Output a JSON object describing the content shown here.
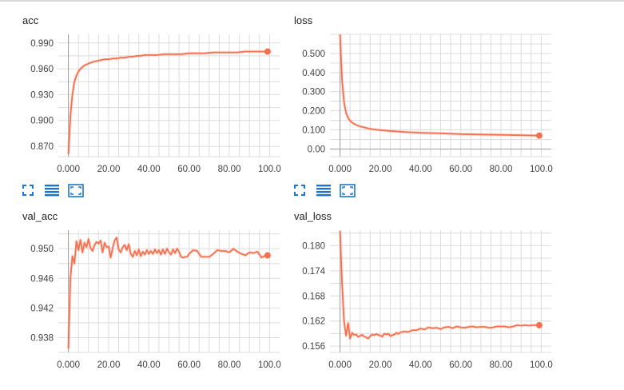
{
  "colors": {
    "line": "#f4704f",
    "smooth_shadow": "#fbc6b8",
    "grid": "#dcdcdc",
    "toolbar_icon": "#1976d2"
  },
  "toolbar_icons": [
    "fit-domain-icon",
    "toggle-log-scale-icon",
    "expand-chart-icon"
  ],
  "chart_data": [
    {
      "type": "line",
      "title": "acc",
      "x_ticks": [
        "0.000",
        "20.00",
        "40.00",
        "60.00",
        "80.00",
        "100.0"
      ],
      "y_ticks": [
        "0.990",
        "0.960",
        "0.930",
        "0.900",
        "0.870"
      ],
      "y_tick_values": [
        0.99,
        0.96,
        0.93,
        0.9,
        0.87
      ],
      "xlim": [
        -5,
        105
      ],
      "ylim": [
        0.858,
        1.0
      ],
      "series": [
        {
          "x": [
            0,
            1,
            2,
            3,
            4,
            5,
            6,
            8,
            10,
            12,
            14,
            16,
            18,
            20,
            22,
            24,
            26,
            28,
            30,
            32,
            34,
            36,
            38,
            40,
            44,
            48,
            52,
            56,
            60,
            64,
            68,
            72,
            76,
            80,
            84,
            88,
            92,
            96,
            99
          ],
          "y": [
            0.861,
            0.905,
            0.93,
            0.945,
            0.952,
            0.957,
            0.96,
            0.964,
            0.966,
            0.968,
            0.969,
            0.97,
            0.971,
            0.971,
            0.972,
            0.972,
            0.973,
            0.973,
            0.974,
            0.974,
            0.975,
            0.975,
            0.976,
            0.976,
            0.976,
            0.977,
            0.977,
            0.977,
            0.978,
            0.978,
            0.978,
            0.979,
            0.979,
            0.979,
            0.979,
            0.98,
            0.98,
            0.98,
            0.98
          ],
          "end_marker": true
        }
      ],
      "grid": true
    },
    {
      "type": "line",
      "title": "loss",
      "x_ticks": [
        "0.000",
        "20.00",
        "40.00",
        "60.00",
        "80.00",
        "100.0"
      ],
      "y_ticks": [
        "0.500",
        "0.400",
        "0.300",
        "0.200",
        "0.100",
        "0.00"
      ],
      "y_tick_values": [
        0.5,
        0.4,
        0.3,
        0.2,
        0.1,
        0.0
      ],
      "xlim": [
        -5,
        105
      ],
      "ylim": [
        -0.04,
        0.6
      ],
      "series": [
        {
          "x": [
            0,
            1,
            2,
            3,
            4,
            5,
            6,
            8,
            10,
            12,
            14,
            16,
            20,
            24,
            28,
            32,
            36,
            40,
            50,
            60,
            70,
            80,
            90,
            99
          ],
          "y": [
            0.6,
            0.36,
            0.245,
            0.19,
            0.163,
            0.148,
            0.138,
            0.126,
            0.118,
            0.113,
            0.108,
            0.104,
            0.099,
            0.095,
            0.092,
            0.089,
            0.087,
            0.085,
            0.082,
            0.078,
            0.076,
            0.074,
            0.072,
            0.07
          ],
          "end_marker": true
        }
      ],
      "grid": true
    },
    {
      "type": "line",
      "title": "val_acc",
      "x_ticks": [
        "0.000",
        "20.00",
        "40.00",
        "60.00",
        "80.00",
        "100.0"
      ],
      "y_ticks": [
        "0.950",
        "0.946",
        "0.942",
        "0.938"
      ],
      "y_tick_values": [
        0.95,
        0.946,
        0.942,
        0.938
      ],
      "xlim": [
        -5,
        105
      ],
      "ylim": [
        0.936,
        0.9525
      ],
      "series": [
        {
          "x": [
            0,
            1,
            2,
            3,
            4,
            5,
            6,
            7,
            8,
            9,
            10,
            11,
            12,
            13,
            14,
            15,
            16,
            17,
            18,
            19,
            20,
            21,
            22,
            23,
            24,
            25,
            26,
            27,
            28,
            29,
            30,
            31,
            32,
            33,
            34,
            35,
            36,
            37,
            38,
            39,
            40,
            41,
            42,
            43,
            44,
            45,
            46,
            47,
            48,
            49,
            50,
            51,
            52,
            53,
            54,
            55,
            56,
            57,
            58,
            59,
            60,
            62,
            64,
            66,
            68,
            70,
            72,
            74,
            76,
            78,
            80,
            82,
            84,
            86,
            88,
            90,
            92,
            94,
            96,
            98,
            99
          ],
          "y": [
            0.9365,
            0.946,
            0.949,
            0.948,
            0.951,
            0.9498,
            0.9512,
            0.9495,
            0.9508,
            0.9502,
            0.9513,
            0.9501,
            0.9497,
            0.9505,
            0.9509,
            0.9507,
            0.9511,
            0.9495,
            0.9508,
            0.9502,
            0.9503,
            0.9488,
            0.9501,
            0.9511,
            0.9515,
            0.9499,
            0.9495,
            0.9502,
            0.9505,
            0.9498,
            0.9506,
            0.9493,
            0.9489,
            0.9497,
            0.9491,
            0.9499,
            0.949,
            0.9496,
            0.9492,
            0.9498,
            0.9493,
            0.9497,
            0.9493,
            0.9499,
            0.9494,
            0.9498,
            0.9492,
            0.9499,
            0.9493,
            0.95,
            0.9495,
            0.9492,
            0.9499,
            0.9494,
            0.95,
            0.9496,
            0.9489,
            0.9488,
            0.9489,
            0.9489,
            0.9493,
            0.9498,
            0.9497,
            0.9489,
            0.9489,
            0.9489,
            0.9493,
            0.9498,
            0.9497,
            0.9497,
            0.9495,
            0.95,
            0.9496,
            0.9493,
            0.9491,
            0.9495,
            0.9494,
            0.9496,
            0.9488,
            0.9491,
            0.9491
          ],
          "end_marker": true
        }
      ],
      "grid": true
    },
    {
      "type": "line",
      "title": "val_loss",
      "x_ticks": [
        "0.000",
        "20.00",
        "40.00",
        "60.00",
        "80.00",
        "100.0"
      ],
      "y_ticks": [
        "0.180",
        "0.174",
        "0.168",
        "0.162",
        "0.156"
      ],
      "y_tick_values": [
        0.18,
        0.174,
        0.168,
        0.162,
        0.156
      ],
      "xlim": [
        -5,
        105
      ],
      "ylim": [
        0.1545,
        0.1837
      ],
      "series": [
        {
          "x": [
            0,
            1,
            2,
            3,
            4,
            5,
            6,
            7,
            8,
            9,
            10,
            11,
            12,
            13,
            14,
            15,
            16,
            17,
            18,
            19,
            20,
            21,
            22,
            23,
            24,
            25,
            26,
            27,
            28,
            29,
            30,
            32,
            34,
            36,
            38,
            40,
            42,
            44,
            46,
            48,
            50,
            52,
            54,
            56,
            58,
            60,
            62,
            64,
            66,
            68,
            70,
            72,
            74,
            76,
            78,
            80,
            82,
            84,
            86,
            88,
            90,
            92,
            94,
            96,
            98,
            99
          ],
          "y": [
            0.1835,
            0.171,
            0.162,
            0.1585,
            0.1615,
            0.1578,
            0.1592,
            0.1587,
            0.1588,
            0.1582,
            0.1585,
            0.1587,
            0.1583,
            0.1581,
            0.1578,
            0.1584,
            0.1588,
            0.1586,
            0.1589,
            0.1587,
            0.1585,
            0.1583,
            0.159,
            0.1588,
            0.159,
            0.1584,
            0.1586,
            0.1588,
            0.1592,
            0.1589,
            0.1593,
            0.1595,
            0.1594,
            0.1598,
            0.1598,
            0.1602,
            0.16,
            0.1605,
            0.1603,
            0.1604,
            0.1601,
            0.1605,
            0.1606,
            0.1603,
            0.1607,
            0.1605,
            0.1604,
            0.1606,
            0.1607,
            0.1605,
            0.1606,
            0.1606,
            0.1604,
            0.1605,
            0.1607,
            0.1607,
            0.1607,
            0.1605,
            0.1607,
            0.161,
            0.1609,
            0.161,
            0.1609,
            0.161,
            0.161,
            0.161
          ],
          "end_marker": true
        }
      ],
      "grid": true
    }
  ]
}
